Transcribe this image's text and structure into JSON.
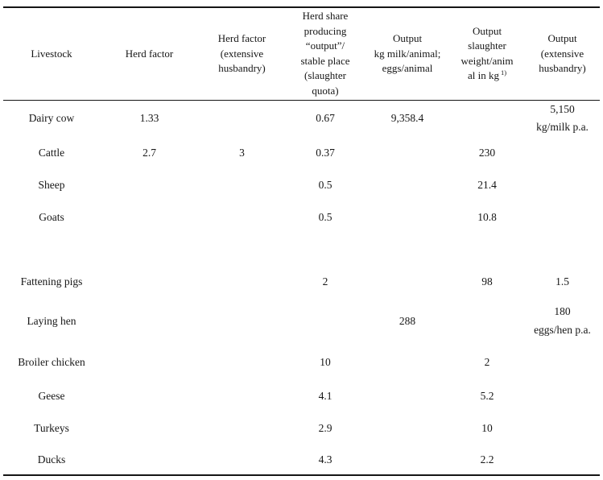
{
  "table": {
    "columns": [
      {
        "label": "Livestock"
      },
      {
        "label": "Herd factor"
      },
      {
        "label": "Herd factor\n(extensive\nhusbandry)"
      },
      {
        "label": "Herd share\nproducing\n“output”/\nstable place\n(slaughter\nquota)"
      },
      {
        "label": "Output\nkg milk/animal;\neggs/animal"
      },
      {
        "label": "Output\nslaughter\nweight/anim\nal in kg",
        "footnote_marker": "1)"
      },
      {
        "label": "Output\n(extensive\nhusbandry)"
      }
    ],
    "rows": [
      {
        "cells": [
          "Dairy cow",
          "1.33",
          "",
          "0.67",
          "9,358.4",
          "",
          "5,150\nkg/milk p.a."
        ]
      },
      {
        "cells": [
          "Cattle",
          "2.7",
          "3",
          "0.37",
          "",
          "230",
          ""
        ]
      },
      {
        "cells": [
          "Sheep",
          "",
          "",
          "0.5",
          "",
          "21.4",
          ""
        ]
      },
      {
        "cells": [
          "Goats",
          "",
          "",
          "0.5",
          "",
          "10.8",
          ""
        ]
      },
      {
        "cells": [
          "",
          "",
          "",
          "",
          "",
          "",
          ""
        ]
      },
      {
        "cells": [
          "Fattening pigs",
          "",
          "",
          "2",
          "",
          "98",
          "1.5"
        ]
      },
      {
        "cells": [
          "Laying hen",
          "",
          "",
          "",
          "288",
          "",
          "180\neggs/hen p.a."
        ]
      },
      {
        "cells": [
          "Broiler chicken",
          "",
          "",
          "10",
          "",
          "2",
          ""
        ]
      },
      {
        "cells": [
          "Geese",
          "",
          "",
          "4.1",
          "",
          "5.2",
          ""
        ]
      },
      {
        "cells": [
          "Turkeys",
          "",
          "",
          "2.9",
          "",
          "10",
          ""
        ]
      },
      {
        "cells": [
          "Ducks",
          "",
          "",
          "4.3",
          "",
          "2.2",
          ""
        ]
      }
    ]
  }
}
